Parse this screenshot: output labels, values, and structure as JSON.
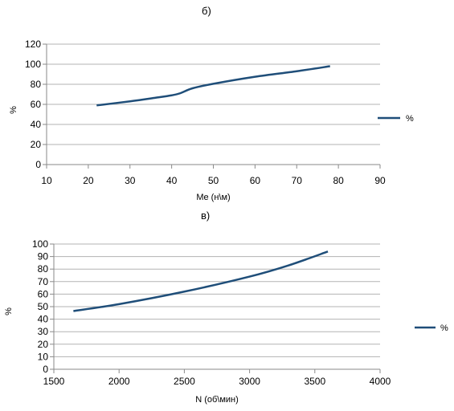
{
  "chart_data": [
    {
      "panel_label": "б)",
      "type": "line",
      "xlabel": "Me (н\\м)",
      "ylabel": "%",
      "xlim": [
        10,
        90
      ],
      "ylim": [
        0,
        120
      ],
      "xticks": [
        "10",
        "20",
        "30",
        "40",
        "50",
        "60",
        "70",
        "80",
        "90"
      ],
      "yticks": [
        "0",
        "20",
        "40",
        "60",
        "80",
        "100",
        "120"
      ],
      "grid": "horizontal",
      "legend": "right",
      "line_color": "#1f4e79",
      "series": [
        {
          "name": "%",
          "x": [
            22,
            30,
            36,
            40,
            42,
            45,
            50,
            60,
            70,
            78
          ],
          "y": [
            59,
            63,
            66.5,
            69,
            71,
            76,
            80.5,
            87.5,
            93,
            98
          ]
        }
      ]
    },
    {
      "panel_label": "в)",
      "type": "line",
      "xlabel": "N (об\\мин)",
      "ylabel": "%",
      "xlim": [
        1500,
        4000
      ],
      "ylim": [
        0,
        100
      ],
      "xticks": [
        "1500",
        "2000",
        "2500",
        "3000",
        "3500",
        "4000"
      ],
      "yticks": [
        "0",
        "10",
        "20",
        "30",
        "40",
        "50",
        "60",
        "70",
        "80",
        "90",
        "100"
      ],
      "grid": "horizontal",
      "legend": "right",
      "line_color": "#1f4e79",
      "series": [
        {
          "name": "%",
          "x": [
            1650,
            2000,
            2500,
            3000,
            3300,
            3600
          ],
          "y": [
            46.5,
            52,
            62,
            74,
            83,
            94
          ]
        }
      ]
    }
  ]
}
